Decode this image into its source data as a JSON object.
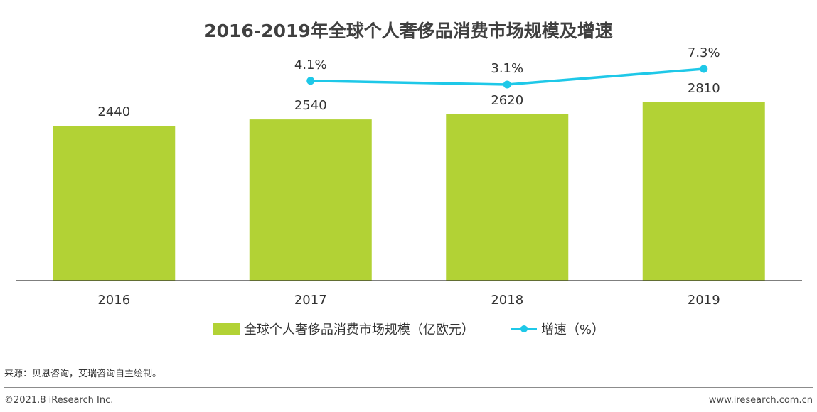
{
  "chart_data": {
    "type": "bar",
    "title": "2016-2019年全球个人奢侈品消费市场规模及增速",
    "categories": [
      "2016",
      "2017",
      "2018",
      "2019"
    ],
    "series": [
      {
        "name": "全球个人奢侈品消费市场规模（亿欧元）",
        "type": "bar",
        "values": [
          2440,
          2540,
          2620,
          2810
        ],
        "labels": [
          "2440",
          "2540",
          "2620",
          "2810"
        ]
      },
      {
        "name": "增速（%）",
        "type": "line",
        "values": [
          null,
          4.1,
          3.1,
          7.3
        ],
        "labels": [
          "",
          "4.1%",
          "3.1%",
          "7.3%"
        ]
      }
    ],
    "ylim": [
      0,
      2810
    ],
    "line_ylim": [
      3.1,
      7.3
    ],
    "grid": false,
    "legend": "bottom"
  },
  "colors": {
    "bar": "#b2d235",
    "line": "#1ec8e8",
    "axis": "#333333"
  },
  "footer": {
    "source": "来源：贝恩咨询，艾瑞咨询自主绘制。",
    "copyright": "©2021.8 iResearch Inc.",
    "site": "www.iresearch.com.cn"
  }
}
